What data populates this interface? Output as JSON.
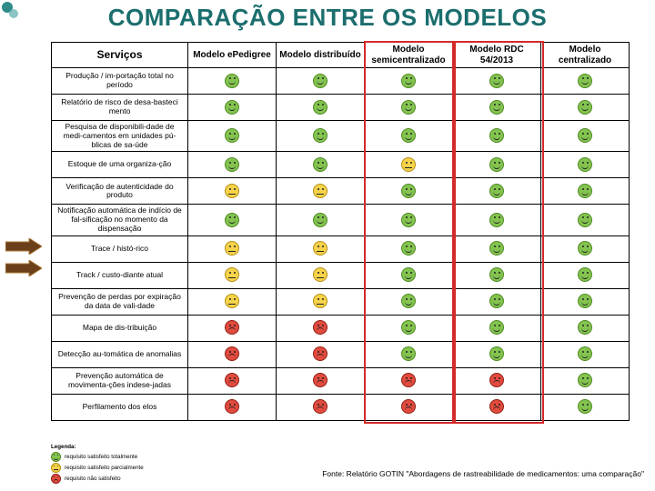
{
  "title": "COMPARAÇÃO ENTRE OS MODELOS",
  "headers": {
    "services": "Serviços",
    "cols": [
      "Modelo ePedigree",
      "Modelo distribuído",
      "Modelo semicentralizado",
      "Modelo RDC 54/2013",
      "Modelo centralizado"
    ]
  },
  "legend": {
    "title": "Legenda:",
    "items": [
      {
        "state": "green",
        "label": "requisito satisfeito totalmente"
      },
      {
        "state": "yellow",
        "label": "requisito satisfeito parcialmente"
      },
      {
        "state": "red",
        "label": "requisito não satisfeito"
      }
    ]
  },
  "source": "Fonte: Relatório GOTIN \"Abordagens de rastreabilidade de medicamentos: uma comparação\"",
  "highlight_columns": [
    2,
    3
  ],
  "colors": {
    "title": "#1b6e6e",
    "highlight_border": "#d42a2a",
    "green": "#83c34f",
    "yellow": "#f6d34a",
    "red": "#e14b3e",
    "arrow_fill": "#6b3f1a",
    "arrow_stroke": "#a87a3a"
  },
  "rows": [
    {
      "label": "Produção / im-portação total no período",
      "cells": [
        "green",
        "green",
        "green",
        "green",
        "green"
      ]
    },
    {
      "label": "Relatório de risco de desa-basteci mento",
      "cells": [
        "green",
        "green",
        "green",
        "green",
        "green"
      ]
    },
    {
      "label": "Pesquisa de disponibili-dade de medi-camentos em unidades pú-blicas de sa-úde",
      "cells": [
        "green",
        "green",
        "green",
        "green",
        "green"
      ]
    },
    {
      "label": "Estoque de uma organiza-ção",
      "cells": [
        "green",
        "green",
        "yellow",
        "green",
        "green"
      ]
    },
    {
      "label": "Verificação de autenticidade do produto",
      "cells": [
        "yellow",
        "yellow",
        "green",
        "green",
        "green"
      ]
    },
    {
      "label": "Notificação automática de indício de fal-sificação no momento da dispensação",
      "cells": [
        "green",
        "green",
        "green",
        "green",
        "green"
      ]
    },
    {
      "label": "Trace / histó-rico",
      "cells": [
        "yellow",
        "yellow",
        "green",
        "green",
        "green"
      ]
    },
    {
      "label": "Track / custo-diante atual",
      "cells": [
        "yellow",
        "yellow",
        "green",
        "green",
        "green"
      ]
    },
    {
      "label": "Prevenção de perdas por expiração da data de vali-dade",
      "cells": [
        "yellow",
        "yellow",
        "green",
        "green",
        "green"
      ]
    },
    {
      "label": "Mapa de dis-tribuição",
      "cells": [
        "red",
        "red",
        "green",
        "green",
        "green"
      ]
    },
    {
      "label": "Detecção au-tomática de anomalias",
      "cells": [
        "red",
        "red",
        "green",
        "green",
        "green"
      ]
    },
    {
      "label": "Prevenção automática de movimenta-ções indese-jadas",
      "cells": [
        "red",
        "red",
        "red",
        "red",
        "green"
      ]
    },
    {
      "label": "Perfilamento dos elos",
      "cells": [
        "red",
        "red",
        "red",
        "red",
        "green"
      ]
    }
  ]
}
